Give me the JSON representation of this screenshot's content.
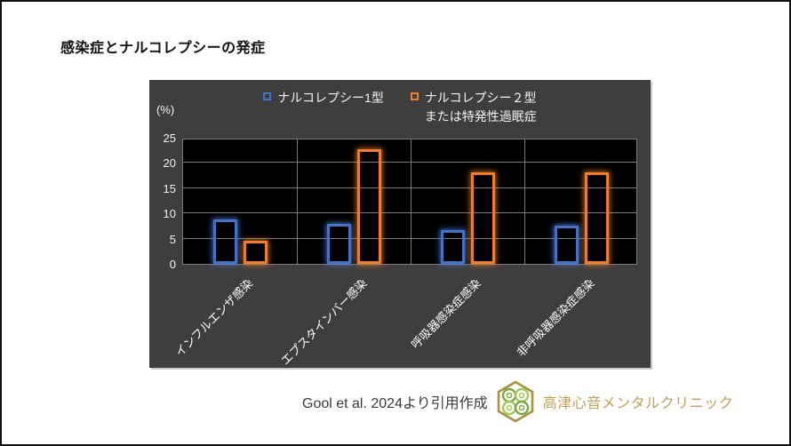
{
  "page": {
    "title": "感染症とナルコレプシーの発症",
    "source_note": "Gool et al. 2024より引用作成",
    "clinic_name": "高津心音メンタルクリニック",
    "logo_icon": "clover-hexagon-logo",
    "colors": {
      "panel_bg": "#3e3e3e",
      "plot_bg": "#000000",
      "gridline": "#7a7a7a",
      "tick_text": "#f2f2f2",
      "title_text": "#111111",
      "source_text": "#3a3a3a",
      "clinic_gold": "#bfa05a",
      "logo_hex_gold": "#a8923f",
      "logo_leaf_green_dark": "#74a83e",
      "logo_leaf_green_light": "#a3c855"
    }
  },
  "chart_data": {
    "type": "bar",
    "title": "",
    "unit_label": "(%)",
    "xlabel": "",
    "ylabel": "(%)",
    "ylim": [
      0,
      25
    ],
    "yticks": [
      0,
      5,
      10,
      15,
      20,
      25
    ],
    "grid": true,
    "legend_position": "top",
    "categories": [
      "インフルエンザ感染",
      "エプスタインバー感染",
      "呼吸器感染症感染",
      "非呼吸器感染症感染"
    ],
    "series": [
      {
        "name": "ナルコレプシー1型",
        "name2": "",
        "color": "#4472c4",
        "glow": "rgba(80,130,230,0.8)",
        "values": [
          8.8,
          8.0,
          6.7,
          7.5
        ]
      },
      {
        "name": "ナルコレプシー２型",
        "name2": "または特発性過眠症",
        "color": "#ed7d31",
        "glow": "rgba(240,130,40,0.8)",
        "values": [
          4.5,
          22.8,
          18.2,
          18.2
        ]
      }
    ]
  }
}
